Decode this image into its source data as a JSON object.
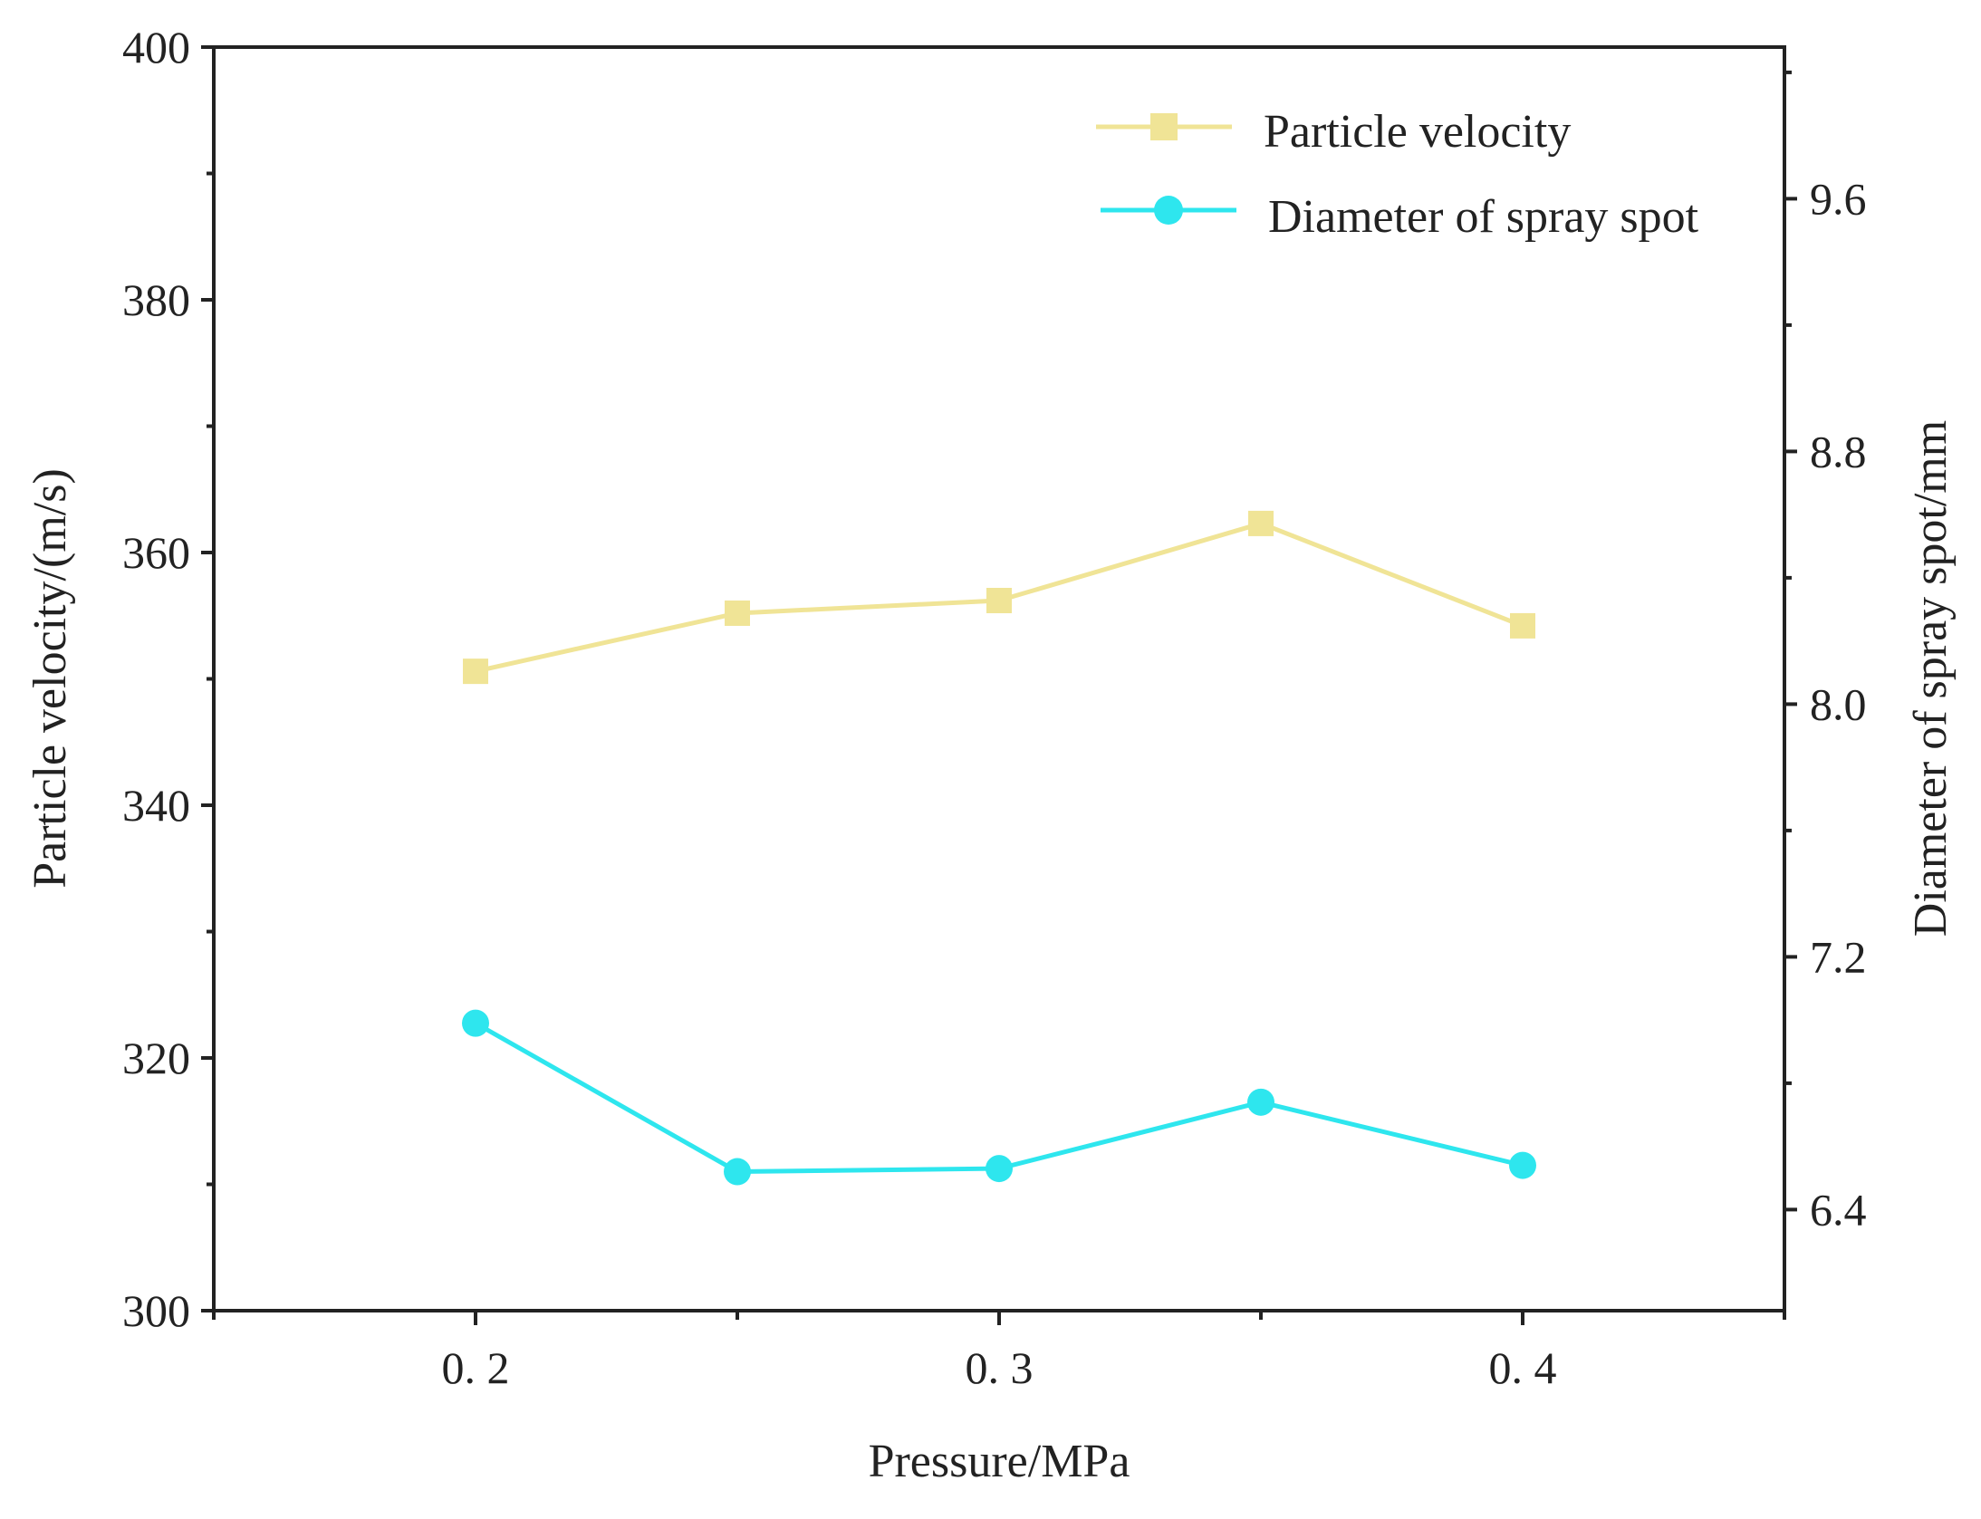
{
  "chart_data": {
    "type": "line",
    "title": "",
    "xlabel": "Pressure/MPa",
    "ylabel_left": "Particle velocity/(m/s)",
    "ylabel_right": "Diameter of spray spot/mm",
    "xlim": [
      0.15,
      0.45
    ],
    "ylim_left": [
      300,
      400
    ],
    "ylim_right": [
      6.08,
      10.08
    ],
    "x_ticks": [
      0.2,
      0.3,
      0.4
    ],
    "x_tick_labels": [
      "0. 2",
      "0. 3",
      "0. 4"
    ],
    "x_minor_ticks": [
      0.15,
      0.25,
      0.35,
      0.45
    ],
    "y_left_ticks": [
      300,
      320,
      340,
      360,
      380,
      400
    ],
    "y_left_tick_labels": [
      "300",
      "320",
      "340",
      "360",
      "380",
      "400"
    ],
    "y_right_ticks": [
      6.4,
      7.2,
      8.0,
      8.8,
      9.6
    ],
    "y_right_tick_labels": [
      "6.4",
      "7.2",
      "8.0",
      "8.8",
      "9.6"
    ],
    "x": [
      0.2,
      0.25,
      0.3,
      0.35,
      0.4
    ],
    "legend_position": "top-right",
    "grid": false,
    "series": [
      {
        "name": "Particle velocity",
        "axis": "left",
        "marker": "square",
        "color": "#f0e496",
        "values": [
          350.6,
          355.2,
          356.2,
          362.3,
          354.2
        ]
      },
      {
        "name": "Diameter of spray spot",
        "axis": "right",
        "marker": "circle",
        "color": "#2ee6ee",
        "values": [
          6.99,
          6.52,
          6.53,
          6.74,
          6.54
        ]
      }
    ]
  }
}
